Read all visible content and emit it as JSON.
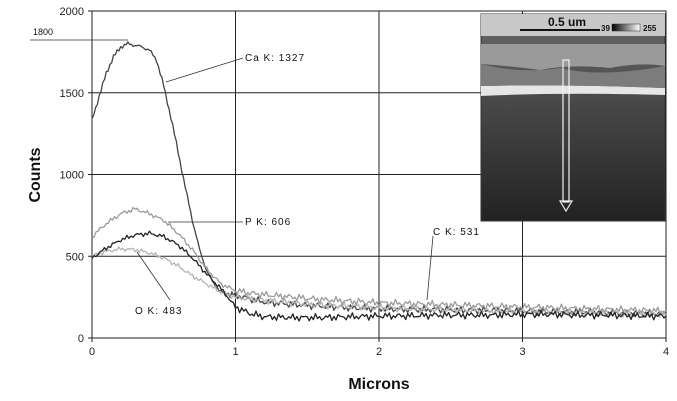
{
  "chart_data": {
    "type": "line",
    "xlabel": "Microns",
    "ylabel": "Counts",
    "xlim": [
      0,
      4
    ],
    "ylim": [
      0,
      2000
    ],
    "x_ticks": [
      "0",
      "1",
      "2",
      "3",
      "4"
    ],
    "y_ticks": [
      "0",
      "500",
      "1000",
      "1500",
      "2000"
    ],
    "grid": true,
    "series": [
      {
        "name": "Ca K",
        "color": "#444444",
        "x": [
          0,
          0.05,
          0.1,
          0.15,
          0.2,
          0.25,
          0.3,
          0.35,
          0.4,
          0.45,
          0.5,
          0.55,
          0.6,
          0.65,
          0.7,
          0.75,
          0.8,
          0.85,
          0.9,
          0.95,
          1.0,
          1.1,
          1.2,
          1.4,
          1.6,
          1.8,
          2.0,
          2.2,
          2.4,
          2.6,
          2.8,
          3.0,
          3.2,
          3.4,
          3.6,
          3.8,
          4.0
        ],
        "y": [
          1330,
          1480,
          1620,
          1720,
          1780,
          1800,
          1790,
          1780,
          1760,
          1700,
          1540,
          1350,
          1140,
          920,
          720,
          540,
          410,
          330,
          280,
          270,
          260,
          240,
          220,
          205,
          195,
          185,
          180,
          175,
          175,
          170,
          170,
          165,
          160,
          160,
          155,
          150,
          150
        ]
      },
      {
        "name": "P K",
        "color": "#9a9a9a",
        "x": [
          0,
          0.1,
          0.2,
          0.3,
          0.4,
          0.5,
          0.6,
          0.7,
          0.8,
          0.9,
          1.0,
          1.1,
          1.2,
          1.4,
          1.6,
          1.8,
          2.0,
          2.2,
          2.4,
          2.6,
          2.8,
          3.0,
          3.2,
          3.4,
          3.6,
          3.8,
          4.0
        ],
        "y": [
          620,
          700,
          760,
          790,
          760,
          720,
          640,
          540,
          420,
          330,
          290,
          275,
          265,
          250,
          235,
          225,
          215,
          210,
          205,
          200,
          195,
          190,
          185,
          180,
          175,
          170,
          165
        ]
      },
      {
        "name": "O K",
        "color": "#b4b4b4",
        "x": [
          0,
          0.1,
          0.2,
          0.3,
          0.4,
          0.5,
          0.6,
          0.7,
          0.8,
          0.9,
          1.0,
          1.1,
          1.2,
          1.4,
          1.6,
          1.8,
          2.0,
          2.2,
          2.4,
          2.6,
          2.8,
          3.0,
          3.2,
          3.4,
          3.6,
          3.8,
          4.0
        ],
        "y": [
          500,
          530,
          545,
          540,
          520,
          490,
          440,
          380,
          330,
          280,
          250,
          240,
          230,
          215,
          200,
          195,
          185,
          180,
          175,
          170,
          165,
          160,
          160,
          155,
          150,
          150,
          145
        ]
      },
      {
        "name": "C K",
        "color": "#222222",
        "x": [
          0,
          0.1,
          0.2,
          0.3,
          0.4,
          0.5,
          0.6,
          0.7,
          0.8,
          0.9,
          1.0,
          1.1,
          1.2,
          1.4,
          1.6,
          1.8,
          2.0,
          2.2,
          2.4,
          2.6,
          2.8,
          3.0,
          3.2,
          3.4,
          3.6,
          3.8,
          4.0
        ],
        "y": [
          490,
          550,
          600,
          630,
          640,
          620,
          570,
          490,
          390,
          300,
          190,
          150,
          130,
          125,
          125,
          130,
          135,
          135,
          140,
          140,
          140,
          145,
          145,
          140,
          140,
          135,
          135
        ]
      }
    ],
    "annotations": [
      {
        "text": "Ca K: 1327",
        "x": 1.07,
        "y": 1745
      },
      {
        "text": "P K: 606",
        "x": 1.07,
        "y": 705
      },
      {
        "text": "C K: 531",
        "x": 2.37,
        "y": 630
      },
      {
        "text": "O K: 483",
        "x": 0.3,
        "y": 150
      },
      {
        "text": "1800",
        "x": -0.4,
        "y": 1850
      }
    ]
  },
  "inset": {
    "scale_bar_label": "0.5 um",
    "colorbar_min": "39",
    "colorbar_max": "255"
  }
}
